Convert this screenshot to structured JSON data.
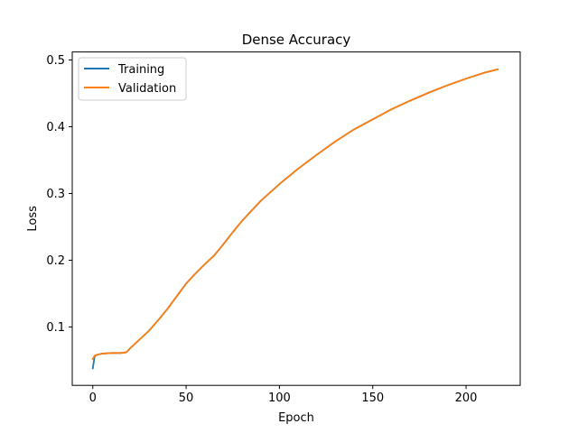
{
  "chart_data": {
    "type": "line",
    "title": "Dense Accuracy",
    "xlabel": "Epoch",
    "ylabel": "Loss",
    "xlim": [
      -11,
      229
    ],
    "ylim": [
      0.0125,
      0.512
    ],
    "xticks": [
      0,
      50,
      100,
      150,
      200
    ],
    "yticks": [
      0.1,
      0.2,
      0.3,
      0.4,
      0.5
    ],
    "grid": false,
    "legend": "upper-left",
    "series": [
      {
        "name": "Training",
        "color": "#1f77b4",
        "x": [
          0,
          1,
          2,
          5,
          10,
          15,
          18,
          20,
          25,
          30,
          35,
          40,
          45,
          50,
          55,
          60,
          65,
          70,
          75,
          80,
          90,
          100,
          110,
          120,
          130,
          140,
          150,
          160,
          170,
          180,
          190,
          200,
          210,
          217
        ],
        "y": [
          0.038,
          0.056,
          0.058,
          0.06,
          0.061,
          0.061,
          0.062,
          0.068,
          0.081,
          0.094,
          0.11,
          0.127,
          0.146,
          0.165,
          0.18,
          0.194,
          0.207,
          0.224,
          0.242,
          0.259,
          0.289,
          0.314,
          0.337,
          0.358,
          0.378,
          0.396,
          0.411,
          0.426,
          0.439,
          0.451,
          0.462,
          0.472,
          0.481,
          0.486
        ]
      },
      {
        "name": "Validation",
        "color": "#ff7f0e",
        "x": [
          0,
          1,
          2,
          5,
          10,
          15,
          18,
          20,
          25,
          30,
          35,
          40,
          45,
          50,
          55,
          60,
          65,
          70,
          75,
          80,
          90,
          100,
          110,
          120,
          130,
          140,
          150,
          160,
          170,
          180,
          190,
          200,
          210,
          217
        ],
        "y": [
          0.052,
          0.057,
          0.058,
          0.06,
          0.061,
          0.061,
          0.062,
          0.068,
          0.081,
          0.094,
          0.11,
          0.127,
          0.146,
          0.165,
          0.18,
          0.194,
          0.207,
          0.224,
          0.242,
          0.259,
          0.289,
          0.314,
          0.337,
          0.358,
          0.378,
          0.396,
          0.411,
          0.426,
          0.439,
          0.451,
          0.462,
          0.472,
          0.481,
          0.486
        ]
      }
    ]
  }
}
